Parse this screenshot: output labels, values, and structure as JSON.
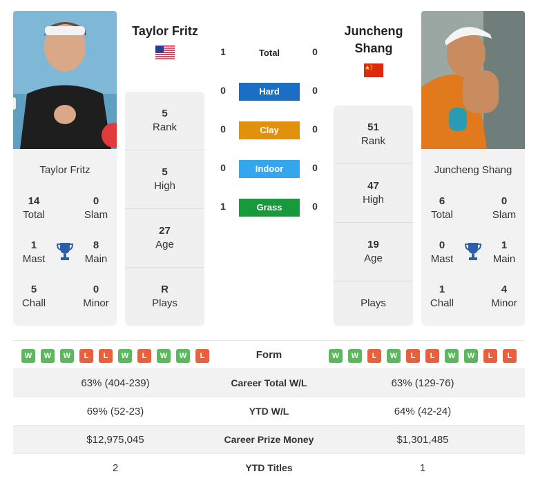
{
  "left": {
    "name": "Taylor Fritz",
    "title": "Taylor Fritz",
    "flag": "us-flag",
    "stats": {
      "total": "14",
      "total_label": "Total",
      "slam": "0",
      "slam_label": "Slam",
      "mast": "1",
      "mast_label": "Mast",
      "main": "8",
      "main_label": "Main",
      "chall": "5",
      "chall_label": "Chall",
      "minor": "0",
      "minor_label": "Minor"
    },
    "rank": "5",
    "rank_label": "Rank",
    "high": "5",
    "high_label": "High",
    "age": "27",
    "age_label": "Age",
    "plays": "R",
    "plays_label": "Plays"
  },
  "right": {
    "name": "Juncheng Shang",
    "title_line1": "Juncheng",
    "title_line2": "Shang",
    "flag": "cn-flag",
    "stats": {
      "total": "6",
      "total_label": "Total",
      "slam": "0",
      "slam_label": "Slam",
      "mast": "0",
      "mast_label": "Mast",
      "main": "1",
      "main_label": "Main",
      "chall": "1",
      "chall_label": "Chall",
      "minor": "4",
      "minor_label": "Minor"
    },
    "rank": "51",
    "rank_label": "Rank",
    "high": "47",
    "high_label": "High",
    "age": "19",
    "age_label": "Age",
    "plays_label": "Plays"
  },
  "h2h": [
    {
      "label": "Total",
      "a": "1",
      "b": "0",
      "color": ""
    },
    {
      "label": "Hard",
      "a": "0",
      "b": "0",
      "color": "#1a6fc4"
    },
    {
      "label": "Clay",
      "a": "0",
      "b": "0",
      "color": "#e0920c"
    },
    {
      "label": "Indoor",
      "a": "0",
      "b": "0",
      "color": "#33a6ee"
    },
    {
      "label": "Grass",
      "a": "1",
      "b": "0",
      "color": "#17993c"
    }
  ],
  "form": {
    "label": "Form",
    "left": [
      "W",
      "W",
      "W",
      "L",
      "L",
      "W",
      "L",
      "W",
      "W",
      "L"
    ],
    "right": [
      "W",
      "W",
      "L",
      "W",
      "L",
      "L",
      "W",
      "W",
      "L",
      "L"
    ]
  },
  "table": [
    {
      "label": "Career Total W/L",
      "left": "63% (404-239)",
      "right": "63% (129-76)"
    },
    {
      "label": "YTD W/L",
      "left": "69% (52-23)",
      "right": "64% (42-24)"
    },
    {
      "label": "Career Prize Money",
      "left": "$12,975,045",
      "right": "$1,301,485"
    },
    {
      "label": "YTD Titles",
      "left": "2",
      "right": "1"
    }
  ]
}
